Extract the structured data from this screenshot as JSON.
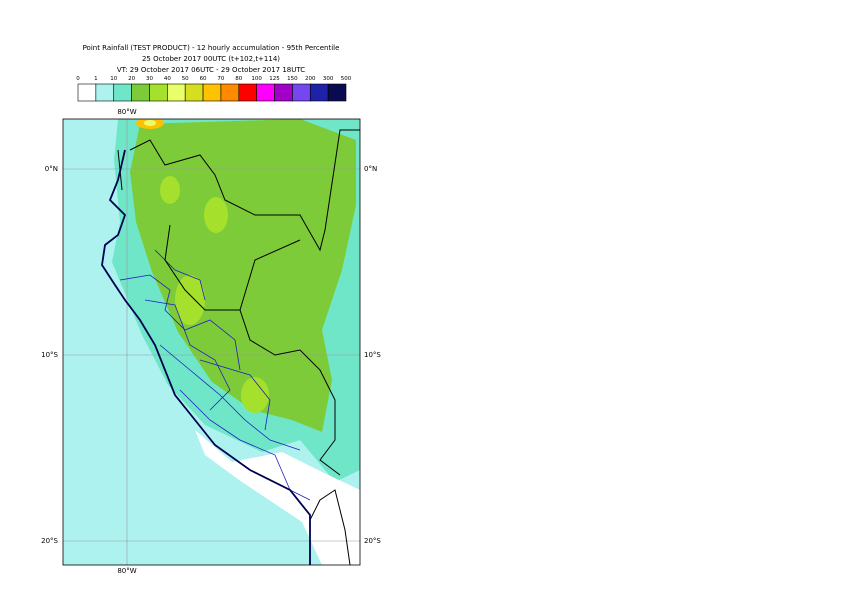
{
  "header": {
    "title_lines": [
      "Point Rainfall (TEST PRODUCT) - 12 hourly accumulation - 95th Percentile",
      "25 October 2017 00UTC (t+102,t+114)",
      "VT: 29 October 2017 06UTC - 29 October 2017 18UTC"
    ]
  },
  "legend": {
    "labels": [
      "0",
      "1",
      "10",
      "20",
      "30",
      "40",
      "50",
      "60",
      "70",
      "80",
      "100",
      "125",
      "150",
      "200",
      "300",
      "500"
    ],
    "colors": [
      "#ffffff",
      "#aef2ef",
      "#6fe6c8",
      "#7ecb3a",
      "#a5e02c",
      "#e8ff6a",
      "#d6df1f",
      "#ffc200",
      "#ff8a00",
      "#ff0000",
      "#ff00ff",
      "#a000c8",
      "#7448ee",
      "#1e22a8",
      "#0a0a50"
    ]
  },
  "map": {
    "lon_label": "80°W",
    "lat_labels": [
      "0°N",
      "10°S",
      "20°S"
    ]
  }
}
